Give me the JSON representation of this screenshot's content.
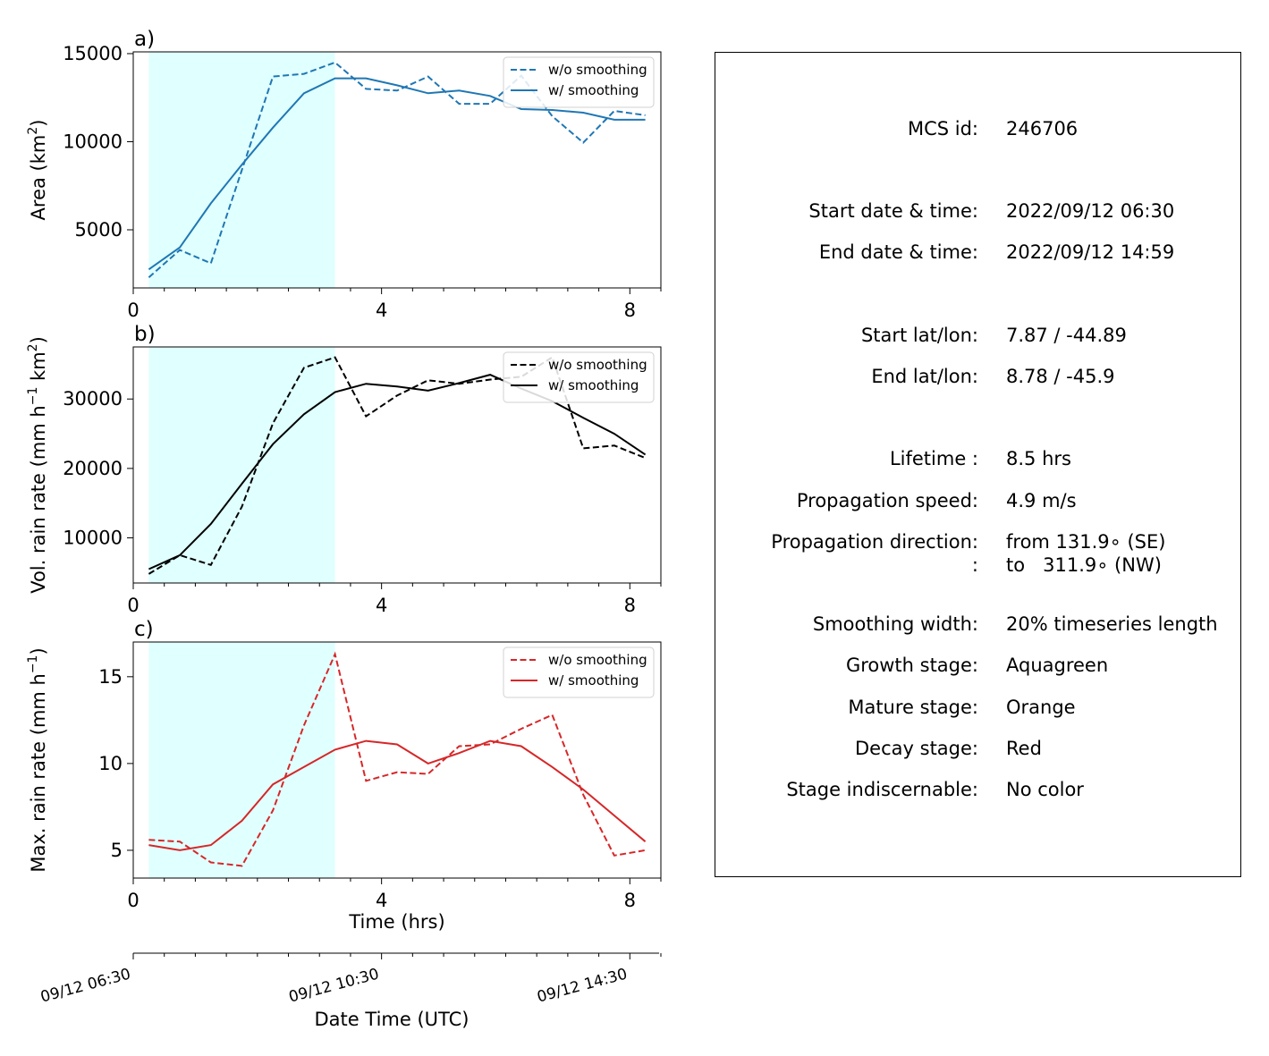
{
  "chart_data": [
    {
      "type": "line",
      "panel_label": "a)",
      "title": "",
      "xlabel": "",
      "ylabel": "Area  (km²)",
      "ylabel_main": "Area  (km",
      "ylabel_sup": "2",
      "ylabel_end": ")",
      "xlim": [
        0,
        8.5
      ],
      "ylim": [
        1700,
        15100
      ],
      "xticks": [
        0,
        4,
        8
      ],
      "yticks": [
        5000,
        10000,
        15000
      ],
      "x": [
        0.25,
        0.75,
        1.25,
        1.75,
        2.25,
        2.75,
        3.25,
        3.75,
        4.25,
        4.75,
        5.25,
        5.75,
        6.25,
        6.75,
        7.25,
        7.75,
        8.25
      ],
      "color": "#1f77b4",
      "legend_position": "upper-right",
      "series": [
        {
          "name": "w/o smoothing",
          "style": "dashed",
          "values": [
            2300,
            3850,
            3100,
            8400,
            13700,
            13850,
            14500,
            13000,
            12900,
            13700,
            12150,
            12150,
            13750,
            11450,
            9950,
            11750,
            11500
          ]
        },
        {
          "name": "w/ smoothing",
          "style": "solid",
          "values": [
            2750,
            4000,
            6500,
            8700,
            10800,
            12750,
            13600,
            13600,
            13200,
            12750,
            12900,
            12600,
            11850,
            11800,
            11650,
            11250,
            11250
          ]
        }
      ]
    },
    {
      "type": "line",
      "panel_label": "b)",
      "title": "",
      "xlabel": "",
      "ylabel": "Vol. rain rate (mm h⁻¹ km²)",
      "ylabel_main": "Vol. rain rate (mm h",
      "ylabel_sup": "−1",
      "ylabel_mid": " km",
      "ylabel_sup2": "2",
      "ylabel_end": ")",
      "xlim": [
        0,
        8.5
      ],
      "ylim": [
        3500,
        37500
      ],
      "xticks": [
        0,
        4,
        8
      ],
      "yticks": [
        10000,
        20000,
        30000
      ],
      "x": [
        0.25,
        0.75,
        1.25,
        1.75,
        2.25,
        2.75,
        3.25,
        3.75,
        4.25,
        4.75,
        5.25,
        5.75,
        6.25,
        6.75,
        7.25,
        7.75,
        8.25
      ],
      "color": "#000000",
      "legend_position": "upper-right",
      "series": [
        {
          "name": "w/o smoothing",
          "style": "dashed",
          "values": [
            4800,
            7500,
            6100,
            14500,
            26500,
            34500,
            36000,
            27500,
            30500,
            32700,
            32200,
            32800,
            33200,
            36000,
            22900,
            23300,
            21500
          ]
        },
        {
          "name": "w/ smoothing",
          "style": "solid",
          "values": [
            5500,
            7500,
            12000,
            17800,
            23500,
            27800,
            31000,
            32200,
            31800,
            31200,
            32300,
            33500,
            31500,
            29700,
            27300,
            25000,
            22000
          ]
        }
      ]
    },
    {
      "type": "line",
      "panel_label": "c)",
      "title": "",
      "xlabel": "Time (hrs)",
      "ylabel": "Max. rain rate  (mm h⁻¹)",
      "ylabel_main": "Max. rain rate  (mm h",
      "ylabel_sup": "−1",
      "ylabel_end": ")",
      "xlim": [
        0,
        8.5
      ],
      "ylim": [
        3.4,
        17.0
      ],
      "xticks": [
        0,
        4,
        8
      ],
      "yticks": [
        5,
        10,
        15
      ],
      "x": [
        0.25,
        0.75,
        1.25,
        1.75,
        2.25,
        2.75,
        3.25,
        3.75,
        4.25,
        4.75,
        5.25,
        5.75,
        6.25,
        6.75,
        7.25,
        7.75,
        8.25
      ],
      "color": "#d62728",
      "legend_position": "upper-right",
      "series": [
        {
          "name": "w/o smoothing",
          "style": "dashed",
          "values": [
            5.6,
            5.5,
            4.3,
            4.1,
            7.3,
            12.2,
            16.3,
            9.0,
            9.5,
            9.4,
            11.0,
            11.1,
            12.0,
            12.8,
            8.2,
            4.7,
            5.0
          ]
        },
        {
          "name": "w/ smoothing",
          "style": "solid",
          "values": [
            5.3,
            5.0,
            5.3,
            6.7,
            8.8,
            9.8,
            10.8,
            11.3,
            11.1,
            10.0,
            10.6,
            11.3,
            11.0,
            9.8,
            8.5,
            7.0,
            5.5
          ]
        }
      ]
    }
  ],
  "shaded_stage": {
    "name": "Growth stage",
    "x_start": 0.25,
    "x_end": 3.25,
    "color": "#e0ffff"
  },
  "time_axis": {
    "xlabel": "Date Time (UTC)",
    "ticks": [
      {
        "hours": 0,
        "label": "09/12 06:30"
      },
      {
        "hours": 4,
        "label": "09/12 10:30"
      },
      {
        "hours": 8,
        "label": "09/12 14:30"
      }
    ]
  },
  "info": {
    "rows": [
      {
        "label": "MCS id:",
        "value": "246706"
      },
      {
        "label": "Start date & time:",
        "value": "2022/09/12 06:30"
      },
      {
        "label": "End date & time:",
        "value": "2022/09/12 14:59"
      },
      {
        "label": "Start lat/lon:",
        "value": "7.87 / -44.89"
      },
      {
        "label": "End lat/lon:",
        "value": "8.78 / -45.9"
      },
      {
        "label": "Lifetime :",
        "value": "8.5 hrs"
      },
      {
        "label": "Propagation speed:",
        "value": "4.9 m/s"
      },
      {
        "label": "Propagation direction:",
        "value": "from 131.9∘ (SE)"
      },
      {
        "label": ":",
        "value": "to   311.9∘ (NW)"
      },
      {
        "label": "Smoothing width:",
        "value": "20% timeseries length"
      },
      {
        "label": "Growth stage:",
        "value": "Aquagreen"
      },
      {
        "label": "Mature stage:",
        "value": "Orange"
      },
      {
        "label": "Decay stage:",
        "value": "Red"
      },
      {
        "label": "Stage indiscernable:",
        "value": "No color"
      }
    ]
  }
}
